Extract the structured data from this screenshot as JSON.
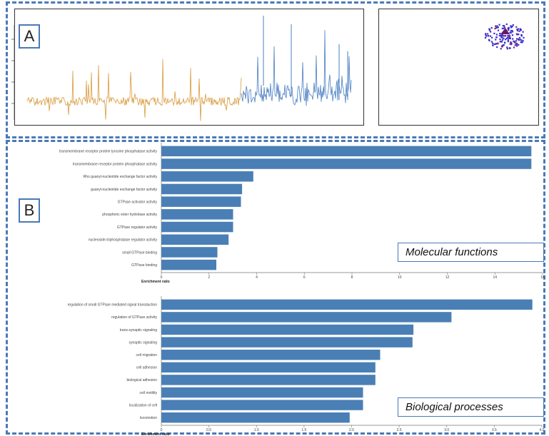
{
  "panel_a": {
    "tag": "A"
  },
  "panel_b": {
    "tag": "B"
  },
  "colors": {
    "signal_orange": "#d99a3e",
    "signal_blue": "#4a7fc1",
    "bar_blue": "#4a7fb5",
    "dash_border": "#4a79b8"
  },
  "chart_data": [
    {
      "type": "line",
      "series": [
        {
          "values_note": "orange segment"
        },
        {
          "values_note": "blue segment"
        }
      ]
    },
    {
      "type": "scatter"
    },
    {
      "type": "bar",
      "orientation": "horizontal",
      "title": "Molecular functions",
      "xlabel": "Enrichment ratio",
      "xlim": [
        0,
        17
      ],
      "xticks": [
        "0",
        "2",
        "4",
        "6",
        "8",
        "10",
        "12",
        "14",
        "16"
      ],
      "categories": [
        "transmembrane receptor protein tyrosine phosphatase activity",
        "transmembrane receptor protein phosphatase activity",
        "Rho guanyl-nucleotide exchange factor activity",
        "guanyl-nucleotide exchange factor activity",
        "GTPase activator activity",
        "phosphoric ester hydrolase activity",
        "GTPase regulator activity",
        "nucleoside-triphosphatase regulator activity",
        "small GTPase binding",
        "GTPase binding"
      ],
      "values": [
        16.5,
        16.5,
        4.1,
        3.6,
        3.55,
        3.2,
        3.2,
        3.0,
        2.5,
        2.45
      ]
    },
    {
      "type": "bar",
      "orientation": "horizontal",
      "title": "Biological processes",
      "xlabel": "Enrichment ratio",
      "xlim": [
        0,
        4.0
      ],
      "xticks": [
        "0",
        "0.5",
        "1.0",
        "1.5",
        "2.0",
        "2.5",
        "3.0",
        "3.5",
        "4.0"
      ],
      "categories": [
        "regulation of small GTPase mediated signal transduction",
        "regulation of GTPase activity",
        "trans-synaptic signaling",
        "synaptic signaling",
        "cell migration",
        "cell adhesion",
        "biological adhesion",
        "cell motility",
        "localization of cell",
        "locomotion"
      ],
      "values": [
        3.9,
        3.05,
        2.65,
        2.64,
        2.3,
        2.25,
        2.25,
        2.12,
        2.12,
        1.98
      ]
    }
  ]
}
